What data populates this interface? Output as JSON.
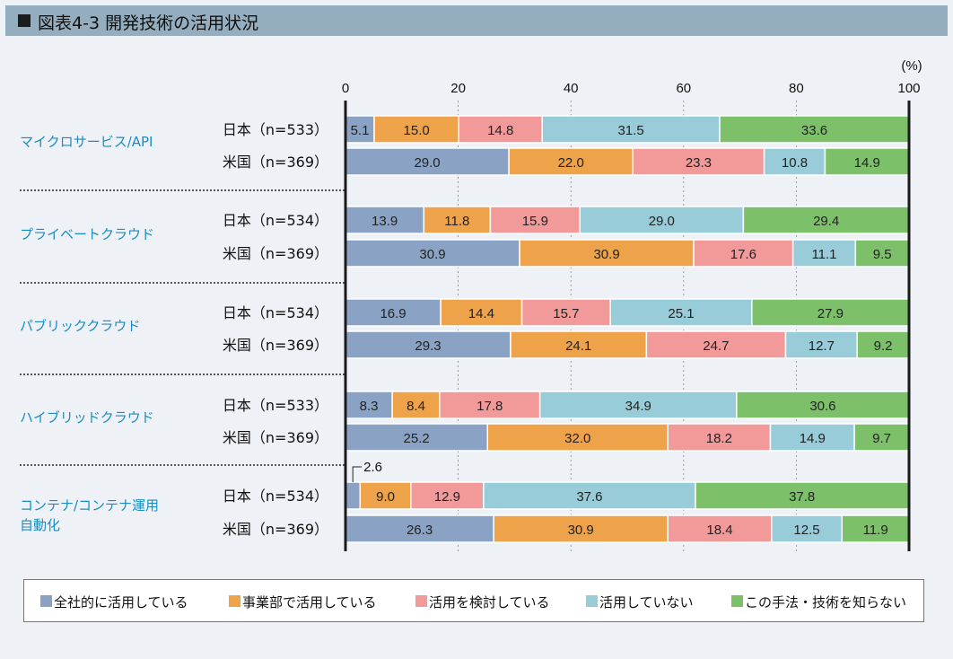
{
  "title": "図表4-3 開発技術の活用状況",
  "legend": [
    {
      "label": "全社的に活用している",
      "color": "#8aa3c4"
    },
    {
      "label": "事業部で活用している",
      "color": "#eea24a"
    },
    {
      "label": "活用を検討している",
      "color": "#f29a9a"
    },
    {
      "label": "活用していない",
      "color": "#98ccd8"
    },
    {
      "label": "この手法・技術を知らない",
      "color": "#7dc06a"
    }
  ],
  "chart_data": {
    "type": "bar",
    "orientation": "horizontal",
    "stacked": true,
    "title": "図表4-3 開発技術の活用状況",
    "unit_label": "(%)",
    "xlim": [
      0,
      100
    ],
    "ticks": [
      "0",
      "20",
      "40",
      "60",
      "80",
      "100"
    ],
    "tick_values": [
      0,
      20,
      40,
      60,
      80,
      100
    ],
    "series": [
      "全社的に活用している",
      "事業部で活用している",
      "活用を検討している",
      "活用していない",
      "この手法・技術を知らない"
    ],
    "groups": [
      {
        "label": "マイクロサービス/API",
        "rows": [
          {
            "label": "日本（n=533）",
            "values": [
              5.1,
              15.0,
              14.8,
              31.5,
              33.6
            ],
            "labels": [
              "5.1",
              "15.0",
              "14.8",
              "31.5",
              "33.6"
            ]
          },
          {
            "label": "米国（n=369）",
            "values": [
              29.0,
              22.0,
              23.3,
              10.8,
              14.9
            ],
            "labels": [
              "29.0",
              "22.0",
              "23.3",
              "10.8",
              "14.9"
            ]
          }
        ]
      },
      {
        "label": "プライベートクラウド",
        "rows": [
          {
            "label": "日本（n=534）",
            "values": [
              13.9,
              11.8,
              15.9,
              29.0,
              29.4
            ],
            "labels": [
              "13.9",
              "11.8",
              "15.9",
              "29.0",
              "29.4"
            ]
          },
          {
            "label": "米国（n=369）",
            "values": [
              30.9,
              30.9,
              17.6,
              11.1,
              9.5
            ],
            "labels": [
              "30.9",
              "30.9",
              "17.6",
              "11.1",
              "9.5"
            ]
          }
        ]
      },
      {
        "label": "パブリッククラウド",
        "rows": [
          {
            "label": "日本（n=534）",
            "values": [
              16.9,
              14.4,
              15.7,
              25.1,
              27.9
            ],
            "labels": [
              "16.9",
              "14.4",
              "15.7",
              "25.1",
              "27.9"
            ]
          },
          {
            "label": "米国（n=369）",
            "values": [
              29.3,
              24.1,
              24.7,
              12.7,
              9.2
            ],
            "labels": [
              "29.3",
              "24.1",
              "24.7",
              "12.7",
              "9.2"
            ]
          }
        ]
      },
      {
        "label": "ハイブリッドクラウド",
        "rows": [
          {
            "label": "日本（n=533）",
            "values": [
              8.3,
              8.4,
              17.8,
              34.9,
              30.6
            ],
            "labels": [
              "8.3",
              "8.4",
              "17.8",
              "34.9",
              "30.6"
            ]
          },
          {
            "label": "米国（n=369）",
            "values": [
              25.2,
              32.0,
              18.2,
              14.9,
              9.7
            ],
            "labels": [
              "25.2",
              "32.0",
              "18.2",
              "14.9",
              "9.7"
            ]
          }
        ]
      },
      {
        "label": "コンテナ/コンテナ運用自動化",
        "label_lines": [
          "コンテナ/コンテナ運用",
          "自動化"
        ],
        "rows": [
          {
            "label": "日本（n=534）",
            "values": [
              2.6,
              9.0,
              12.9,
              37.6,
              37.8
            ],
            "labels": [
              "2.6",
              "9.0",
              "12.9",
              "37.6",
              "37.8"
            ],
            "callout_first": true
          },
          {
            "label": "米国（n=369）",
            "values": [
              26.3,
              30.9,
              18.4,
              12.5,
              11.9
            ],
            "labels": [
              "26.3",
              "30.9",
              "18.4",
              "12.5",
              "11.9"
            ]
          }
        ]
      }
    ]
  }
}
